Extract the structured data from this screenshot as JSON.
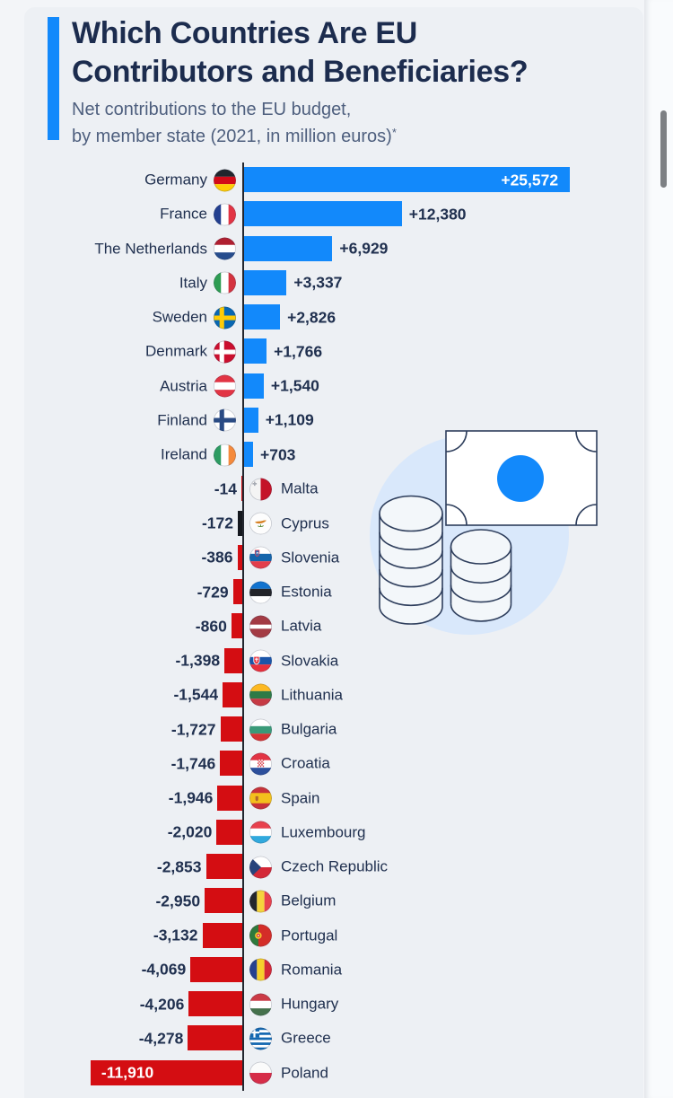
{
  "header": {
    "title_line1": "Which Countries Are EU",
    "title_line2": "Contributors and Beneficiaries?",
    "subtitle_line1": "Net contributions to the EU budget,",
    "subtitle_line2": "by member state (2021, in million euros)",
    "footnote_marker": "*"
  },
  "chart_data": {
    "type": "bar",
    "orientation": "horizontal",
    "title": "Which Countries Are EU Contributors and Beneficiaries?",
    "subtitle": "Net contributions to the EU budget, by member state (2021, in million euros)*",
    "unit": "million euros",
    "year": 2021,
    "xlim": [
      -12500,
      26000
    ],
    "grid": false,
    "rows": [
      {
        "country": "Germany",
        "flag": "de",
        "value": 25572,
        "label": "+25,572",
        "value_inside": true
      },
      {
        "country": "France",
        "flag": "fr",
        "value": 12380,
        "label": "+12,380"
      },
      {
        "country": "The Netherlands",
        "flag": "nl",
        "value": 6929,
        "label": "+6,929"
      },
      {
        "country": "Italy",
        "flag": "it",
        "value": 3337,
        "label": "+3,337"
      },
      {
        "country": "Sweden",
        "flag": "se",
        "value": 2826,
        "label": "+2,826"
      },
      {
        "country": "Denmark",
        "flag": "dk",
        "value": 1766,
        "label": "+1,766"
      },
      {
        "country": "Austria",
        "flag": "at",
        "value": 1540,
        "label": "+1,540"
      },
      {
        "country": "Finland",
        "flag": "fi",
        "value": 1109,
        "label": "+1,109"
      },
      {
        "country": "Ireland",
        "flag": "ie",
        "value": 703,
        "label": "+703"
      },
      {
        "country": "Malta",
        "flag": "mt",
        "value": -14,
        "label": "-14"
      },
      {
        "country": "Cyprus",
        "flag": "cy",
        "value": -172,
        "label": "-172",
        "dark_bar": true
      },
      {
        "country": "Slovenia",
        "flag": "si",
        "value": -386,
        "label": "-386"
      },
      {
        "country": "Estonia",
        "flag": "ee",
        "value": -729,
        "label": "-729"
      },
      {
        "country": "Latvia",
        "flag": "lv",
        "value": -860,
        "label": "-860"
      },
      {
        "country": "Slovakia",
        "flag": "sk",
        "value": -1398,
        "label": "-1,398"
      },
      {
        "country": "Lithuania",
        "flag": "lt",
        "value": -1544,
        "label": "-1,544"
      },
      {
        "country": "Bulgaria",
        "flag": "bg",
        "value": -1727,
        "label": "-1,727"
      },
      {
        "country": "Croatia",
        "flag": "hr",
        "value": -1746,
        "label": "-1,746"
      },
      {
        "country": "Spain",
        "flag": "es",
        "value": -1946,
        "label": "-1,946"
      },
      {
        "country": "Luxembourg",
        "flag": "lu",
        "value": -2020,
        "label": "-2,020"
      },
      {
        "country": "Czech Republic",
        "flag": "cz",
        "value": -2853,
        "label": "-2,853"
      },
      {
        "country": "Belgium",
        "flag": "be",
        "value": -2950,
        "label": "-2,950"
      },
      {
        "country": "Portugal",
        "flag": "pt",
        "value": -3132,
        "label": "-3,132"
      },
      {
        "country": "Romania",
        "flag": "ro",
        "value": -4069,
        "label": "-4,069"
      },
      {
        "country": "Hungary",
        "flag": "hu",
        "value": -4206,
        "label": "-4,206"
      },
      {
        "country": "Greece",
        "flag": "gr",
        "value": -4278,
        "label": "-4,278"
      },
      {
        "country": "Poland",
        "flag": "pl",
        "value": -11910,
        "label": "-11,910",
        "value_inside": true
      }
    ]
  },
  "colors": {
    "accent_blue": "#1289fb",
    "bar_positive": "#1289fb",
    "bar_negative": "#d40d12",
    "cyprus_bar": "#15181e",
    "axis": "#23272f",
    "title_text": "#1c2c4e",
    "subtitle_text": "#4e5f7e",
    "label_text": "#20304f",
    "value_in_bar_text": "#ffffff",
    "card_bg": "#edf0f4",
    "page_bg": "#f3f5f8",
    "scrollbar_strip_bg": "#f9fbfd",
    "scrollbar_thumb": "#7d8084",
    "illustration_halo": "#d9e8fb",
    "illustration_stroke": "#2e3e5c"
  }
}
